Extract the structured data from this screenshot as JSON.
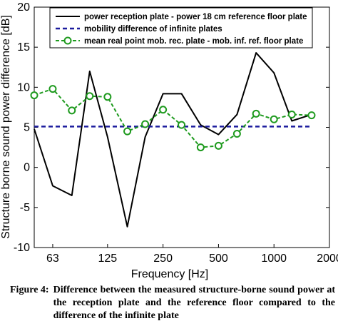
{
  "chart_data": {
    "type": "line",
    "xlabel": "Frequency [Hz]",
    "ylabel": "Structure borne sound power difference [dB]",
    "xscale": "log",
    "xlim": [
      50,
      2000
    ],
    "ylim": [
      -10,
      20
    ],
    "xticks": [
      63,
      125,
      250,
      500,
      1000,
      2000
    ],
    "xtick_labels": [
      "63",
      "125",
      "250",
      "500",
      "1000",
      "2000"
    ],
    "yticks": [
      -10,
      -5,
      0,
      5,
      10,
      15,
      20
    ],
    "ytick_labels": [
      "-10",
      "-5",
      "0",
      "5",
      "10",
      "15",
      "20"
    ],
    "grid": false,
    "legend_position": "top",
    "series": [
      {
        "name": "power reception plate - power 18 cm reference floor plate",
        "style": "solid",
        "marker": "none",
        "color": "#000000",
        "x": [
          50,
          63,
          80,
          100,
          125,
          160,
          200,
          250,
          315,
          400,
          500,
          630,
          800,
          1000,
          1250,
          1600
        ],
        "y": [
          4.8,
          -2.3,
          -3.5,
          12.0,
          3.8,
          -7.4,
          3.8,
          9.2,
          9.2,
          5.3,
          4.1,
          6.6,
          14.3,
          11.8,
          5.8,
          6.6
        ]
      },
      {
        "name": "mobility difference of infinite plates",
        "style": "dashed",
        "marker": "none",
        "color": "#1c1c9e",
        "x": [
          50,
          1600
        ],
        "y": [
          5.1,
          5.1
        ]
      },
      {
        "name": "mean real point mob. rec. plate - mob. inf. ref. floor plate",
        "style": "dashed",
        "marker": "circle",
        "color": "#1e9a1e",
        "x": [
          50,
          63,
          80,
          100,
          125,
          160,
          200,
          250,
          315,
          400,
          500,
          630,
          800,
          1000,
          1250,
          1600
        ],
        "y": [
          9.0,
          9.8,
          7.1,
          8.9,
          8.8,
          4.5,
          5.4,
          7.2,
          5.3,
          2.5,
          2.7,
          4.2,
          6.7,
          6.0,
          6.6,
          6.5
        ]
      }
    ]
  },
  "caption": {
    "label": "Figure 4:",
    "text": "Difference between the measured structure-borne sound power at the reception plate and the reference floor compared to the difference of the infinite plate"
  }
}
